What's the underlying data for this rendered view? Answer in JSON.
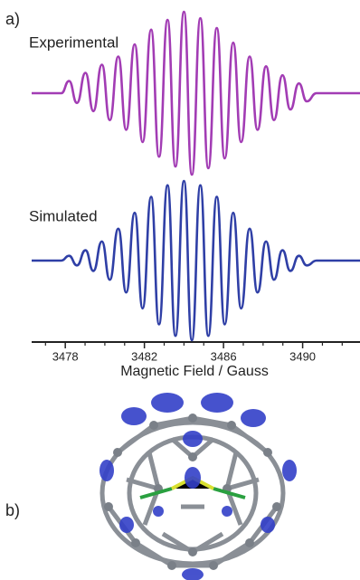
{
  "chart_data": {
    "type": "line",
    "panel_labels": [
      "a)",
      "b)"
    ],
    "xlabel": "Magnetic Field / Gauss",
    "xlim": [
      3476.3,
      3492.9
    ],
    "xticks": [
      3478,
      3482,
      3486,
      3490
    ],
    "xminorticks": [
      3477,
      3479,
      3480,
      3481,
      3483,
      3484,
      3485,
      3487,
      3488,
      3489,
      3491,
      3492
    ],
    "ylim": [
      -1,
      1
    ],
    "x": [
      3476.3,
      3477.8,
      3478.19,
      3478.59,
      3479.02,
      3479.42,
      3479.85,
      3480.25,
      3480.68,
      3481.08,
      3481.51,
      3481.91,
      3482.34,
      3482.74,
      3483.17,
      3483.57,
      3484.0,
      3484.4,
      3484.83,
      3485.23,
      3485.66,
      3486.06,
      3486.49,
      3486.89,
      3487.32,
      3487.72,
      3488.15,
      3488.55,
      3488.98,
      3489.38,
      3489.81,
      3490.21,
      3490.7,
      3492.9
    ],
    "series": [
      {
        "name": "Experimental",
        "color": "#a23cb4",
        "values": [
          0,
          0,
          0.15,
          -0.12,
          0.25,
          -0.22,
          0.35,
          -0.33,
          0.45,
          -0.45,
          0.6,
          -0.6,
          0.78,
          -0.78,
          0.9,
          -0.9,
          1,
          -1,
          0.92,
          -0.92,
          0.8,
          -0.8,
          0.62,
          -0.6,
          0.45,
          -0.45,
          0.33,
          -0.33,
          0.22,
          -0.2,
          0.12,
          -0.1,
          0,
          0
        ]
      },
      {
        "name": "Simulated",
        "color": "#2f3fa6",
        "values": [
          0,
          0,
          0.06,
          -0.06,
          0.13,
          -0.13,
          0.24,
          -0.24,
          0.4,
          -0.4,
          0.6,
          -0.6,
          0.8,
          -0.8,
          0.945,
          -0.945,
          1,
          -1,
          0.945,
          -0.945,
          0.8,
          -0.8,
          0.6,
          -0.6,
          0.4,
          -0.4,
          0.24,
          -0.24,
          0.13,
          -0.13,
          0.06,
          -0.06,
          0,
          0
        ]
      }
    ]
  }
}
